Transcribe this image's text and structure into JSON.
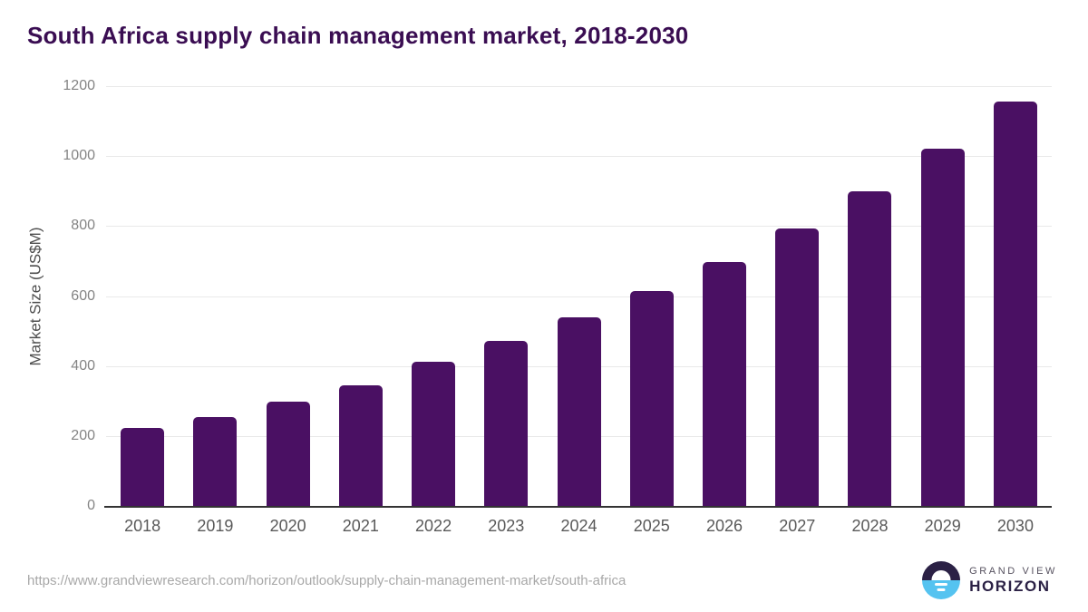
{
  "header": {
    "title": "South Africa supply chain management market, 2018-2030",
    "title_color": "#3a0d52"
  },
  "chart_data": {
    "type": "bar",
    "title": "South Africa supply chain management market, 2018-2030",
    "categories": [
      "2018",
      "2019",
      "2020",
      "2021",
      "2022",
      "2023",
      "2024",
      "2025",
      "2026",
      "2027",
      "2028",
      "2029",
      "2030"
    ],
    "values": [
      222,
      255,
      297,
      344,
      411,
      473,
      540,
      615,
      698,
      792,
      900,
      1022,
      1155
    ],
    "xlabel": "",
    "ylabel": "Market Size (US$M)",
    "ylim": [
      0,
      1200
    ],
    "yticks": [
      0,
      200,
      400,
      600,
      800,
      1000,
      1200
    ],
    "grid": true,
    "legend_position": "none",
    "bar_color": "#4a1063",
    "gridline_color": "#e9e9e9",
    "axis_line_color": "#333333"
  },
  "footer": {
    "source_url": "https://www.grandviewresearch.com/horizon/outlook/supply-chain-management-market/south-africa",
    "logo": {
      "brand_top": "GRAND VIEW",
      "brand_bottom": "HORIZON",
      "icon": "horizon-sun-icon",
      "icon_top_color": "#2b2145",
      "icon_bottom_color": "#55c3f0"
    }
  }
}
